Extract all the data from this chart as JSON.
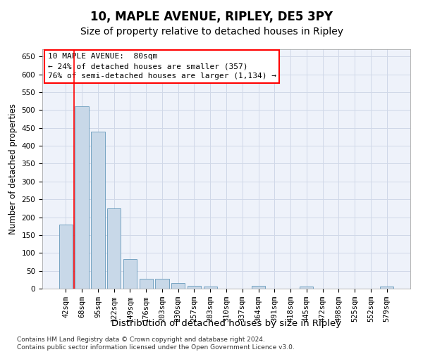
{
  "title": "10, MAPLE AVENUE, RIPLEY, DE5 3PY",
  "subtitle": "Size of property relative to detached houses in Ripley",
  "xlabel": "Distribution of detached houses by size in Ripley",
  "ylabel": "Number of detached properties",
  "categories": [
    "42sqm",
    "68sqm",
    "95sqm",
    "122sqm",
    "149sqm",
    "176sqm",
    "203sqm",
    "230sqm",
    "257sqm",
    "283sqm",
    "310sqm",
    "337sqm",
    "364sqm",
    "391sqm",
    "418sqm",
    "445sqm",
    "472sqm",
    "498sqm",
    "525sqm",
    "552sqm",
    "579sqm"
  ],
  "values": [
    180,
    510,
    440,
    225,
    83,
    28,
    28,
    15,
    8,
    6,
    0,
    0,
    8,
    0,
    0,
    5,
    0,
    0,
    0,
    0,
    5
  ],
  "bar_color": "#c8d8e8",
  "bar_edge_color": "#6699bb",
  "grid_color": "#d0d8e8",
  "background_color": "#eef2fa",
  "annotation_box_text": "10 MAPLE AVENUE:  80sqm\n← 24% of detached houses are smaller (357)\n76% of semi-detached houses are larger (1,134) →",
  "redline_x": 0.5,
  "ylim": [
    0,
    670
  ],
  "yticks": [
    0,
    50,
    100,
    150,
    200,
    250,
    300,
    350,
    400,
    450,
    500,
    550,
    600,
    650
  ],
  "footnote": "Contains HM Land Registry data © Crown copyright and database right 2024.\nContains public sector information licensed under the Open Government Licence v3.0.",
  "title_fontsize": 12,
  "subtitle_fontsize": 10,
  "xlabel_fontsize": 9.5,
  "ylabel_fontsize": 8.5,
  "tick_fontsize": 7.5,
  "annotation_fontsize": 8,
  "footnote_fontsize": 6.5
}
